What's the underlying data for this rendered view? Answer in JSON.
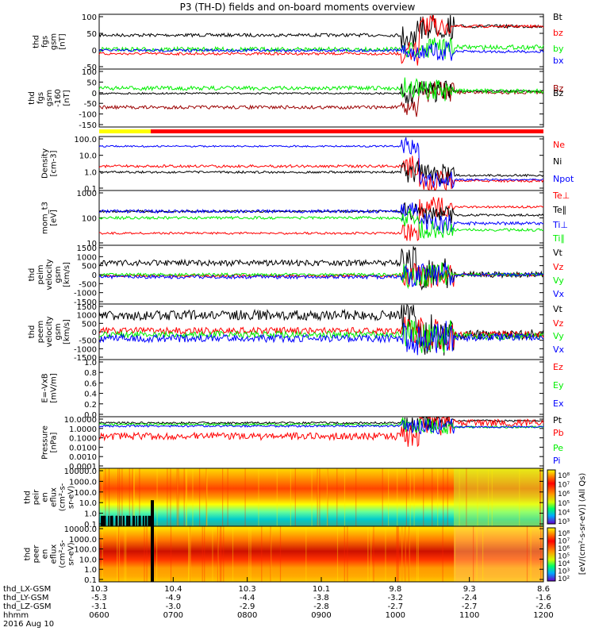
{
  "title": "P3 (TH-D) fields and on-board moments overview",
  "colors": {
    "black": "#000000",
    "red": "#ff0000",
    "green": "#00ee00",
    "blue": "#0000ff",
    "darkred": "#9b0000",
    "yellow": "#ffff00"
  },
  "chart_data": [
    {
      "type": "line",
      "panel": "fgs gsm",
      "ylabel_lines": [
        "thd",
        "fgs",
        "gsm",
        "[nT]"
      ],
      "ylim": [
        -50,
        100
      ],
      "yticks": [
        "100",
        "50",
        "0",
        "-50"
      ],
      "series": [
        {
          "name": "Bt",
          "color": "black"
        },
        {
          "name": "bz",
          "color": "red"
        },
        {
          "name": "by",
          "color": "green"
        },
        {
          "name": "bx",
          "color": "blue"
        }
      ]
    },
    {
      "type": "line",
      "panel": "fgs gse",
      "ylabel_lines": [
        "thd",
        "fgs",
        "gsm",
        "-160",
        "[nT]"
      ],
      "ylim": [
        -175,
        100
      ],
      "yticks": [
        "100",
        "50",
        "0",
        "-50",
        "-100",
        "-150"
      ],
      "series": [
        {
          "name": "Bz",
          "color": "darkred"
        },
        {
          "name": "Bz",
          "color": "black"
        },
        {
          "name": "",
          "color": "green"
        }
      ]
    },
    {
      "type": "line",
      "panel": "density",
      "ylabel_lines": [
        "Density",
        "[cm-3]"
      ],
      "ylim": [
        0.1,
        100
      ],
      "log": true,
      "yticks": [
        "100.0",
        "10.0",
        "1.0",
        "0.1"
      ],
      "series": [
        {
          "name": "Ne",
          "color": "red"
        },
        {
          "name": "Ni",
          "color": "black"
        },
        {
          "name": "Npot",
          "color": "blue"
        }
      ]
    },
    {
      "type": "line",
      "panel": "temperature",
      "ylabel_lines": [
        "mom_t3",
        "[eV]"
      ],
      "ylim": [
        10,
        5000
      ],
      "log": true,
      "yticks": [
        "1000",
        "100",
        "10"
      ],
      "series": [
        {
          "name": "Te⊥",
          "color": "red"
        },
        {
          "name": "Te∥",
          "color": "black"
        },
        {
          "name": "Ti⊥",
          "color": "blue"
        },
        {
          "name": "Ti∥",
          "color": "green"
        }
      ]
    },
    {
      "type": "line",
      "panel": "peim velocity",
      "ylabel_lines": [
        "thd",
        "peim",
        "velocity",
        "gsm",
        "[km/s]"
      ],
      "ylim": [
        -1500,
        1500
      ],
      "yticks": [
        "1500",
        "1000",
        "500",
        "0",
        "-500",
        "-1000",
        "-1500"
      ],
      "series": [
        {
          "name": "Vt",
          "color": "black"
        },
        {
          "name": "Vz",
          "color": "red"
        },
        {
          "name": "Vy",
          "color": "green"
        },
        {
          "name": "Vx",
          "color": "blue"
        }
      ]
    },
    {
      "type": "line",
      "panel": "peem velocity",
      "ylabel_lines": [
        "thd",
        "peem",
        "velocity",
        "gsm",
        "[km/s]"
      ],
      "ylim": [
        -1500,
        1500
      ],
      "yticks": [
        "1500",
        "1000",
        "500",
        "0",
        "-500",
        "-1000",
        "-1500"
      ],
      "series": [
        {
          "name": "Vt",
          "color": "black"
        },
        {
          "name": "Vz",
          "color": "red"
        },
        {
          "name": "Vy",
          "color": "green"
        },
        {
          "name": "Vx",
          "color": "blue"
        }
      ]
    },
    {
      "type": "line",
      "panel": "E=-VxB",
      "ylabel_lines": [
        "E=-VxB",
        "[mV/m]"
      ],
      "ylim": [
        0,
        1
      ],
      "yticks": [
        "1.0",
        "0.8",
        "0.6",
        "0.4",
        "0.2",
        "0.0"
      ],
      "series": [
        {
          "name": "Ez",
          "color": "red"
        },
        {
          "name": "Ey",
          "color": "green"
        },
        {
          "name": "Ex",
          "color": "blue"
        }
      ]
    },
    {
      "type": "line",
      "panel": "pressure",
      "ylabel_lines": [
        "Pressure",
        "[nPa]"
      ],
      "ylim": [
        0.0001,
        10
      ],
      "log": true,
      "yticks": [
        "10.0000",
        "1.0000",
        "0.1000",
        "0.0100",
        "0.0010",
        "0.0001"
      ],
      "series": [
        {
          "name": "Pt",
          "color": "black"
        },
        {
          "name": "Pb",
          "color": "red"
        },
        {
          "name": "Pe",
          "color": "green"
        },
        {
          "name": "Pi",
          "color": "blue"
        }
      ]
    },
    {
      "type": "heatmap",
      "panel": "peir en eflux",
      "ylabel_lines": [
        "thd",
        "peir",
        "en",
        "eflux",
        "(cm²-s-",
        "sr-eV)"
      ],
      "yticks": [
        "10000.0",
        "1000.0",
        "100.0",
        "10.0",
        "1.0",
        "0.1"
      ]
    },
    {
      "type": "heatmap",
      "panel": "peer en eflux",
      "ylabel_lines": [
        "thd",
        "peer",
        "en",
        "eflux",
        "(cm²-s-",
        "sr-eV)"
      ],
      "yticks": [
        "10000.0",
        "1000.0",
        "100.0",
        "10.0",
        "1.0",
        "0.1"
      ]
    }
  ],
  "colorbar": {
    "label": "[eV/(cm²-s-sr-eV)] (All Qs)",
    "ticks_top": [
      "10⁸",
      "10⁷",
      "10⁶",
      "10⁵",
      "10⁴",
      "10³"
    ],
    "ticks_bottom": [
      "10⁸",
      "10⁷",
      "10⁶",
      "10⁵",
      "10⁴",
      "10³",
      "10²"
    ]
  },
  "xaxis": {
    "rows": [
      {
        "label": "thd_LX-GSM",
        "values": [
          "10.3",
          "10.4",
          "10.3",
          "10.1",
          "9.8",
          "9.3",
          "8.6"
        ]
      },
      {
        "label": "thd_LY-GSM",
        "values": [
          "-5.3",
          "-4.9",
          "-4.4",
          "-3.8",
          "-3.2",
          "-2.4",
          "-1.6"
        ]
      },
      {
        "label": "thd_LZ-GSM",
        "values": [
          "-3.1",
          "-3.0",
          "-2.9",
          "-2.8",
          "-2.7",
          "-2.7",
          "-2.6"
        ]
      },
      {
        "label": "hhmm",
        "values": [
          "0600",
          "0700",
          "0800",
          "0900",
          "1000",
          "1100",
          "1200"
        ]
      }
    ],
    "date": "2016 Aug 10"
  }
}
